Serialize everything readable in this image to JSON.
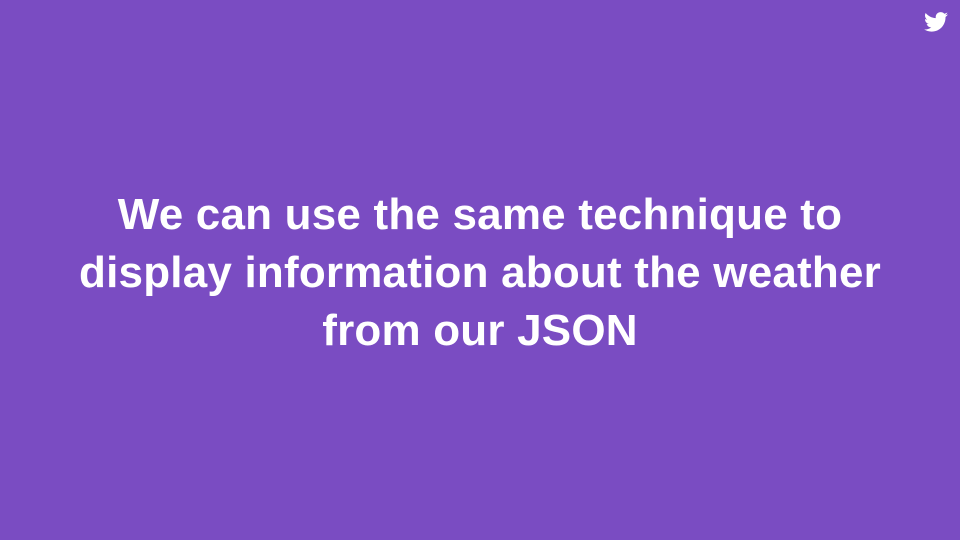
{
  "slide": {
    "background_color": "#7a4cc2",
    "text_color": "#ffffff",
    "lines": [
      "We can use the same technique to",
      "display information about the weather",
      "from our JSON"
    ]
  },
  "icons": {
    "corner": "twitter-bird-icon"
  }
}
